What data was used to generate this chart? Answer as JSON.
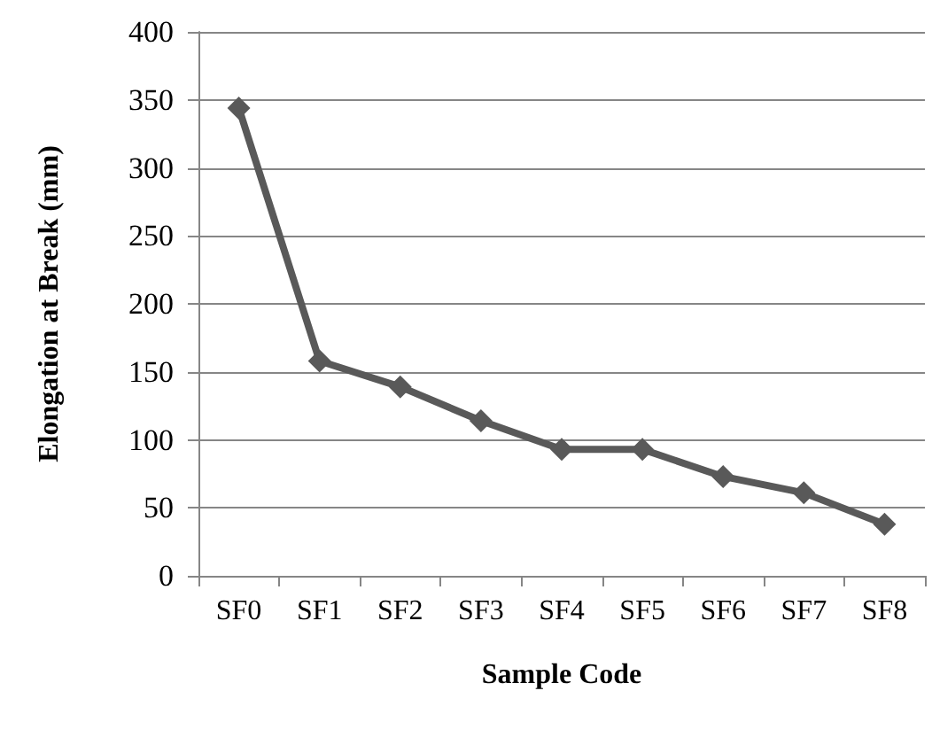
{
  "chart_data": {
    "type": "line",
    "xlabel": "Sample Code",
    "ylabel": "Elongation at Break (mm)",
    "categories": [
      "SF0",
      "SF1",
      "SF2",
      "SF3",
      "SF4",
      "SF5",
      "SF6",
      "SF7",
      "SF8"
    ],
    "series": [
      {
        "color": "#595959",
        "values": [
          344,
          158,
          139,
          114,
          93,
          93,
          73,
          61,
          38
        ]
      }
    ],
    "ylim": [
      0,
      400
    ],
    "yticks": [
      0,
      50,
      100,
      150,
      200,
      250,
      300,
      350,
      400
    ],
    "grid": "y",
    "marker": "diamond",
    "line_style": "solid"
  }
}
